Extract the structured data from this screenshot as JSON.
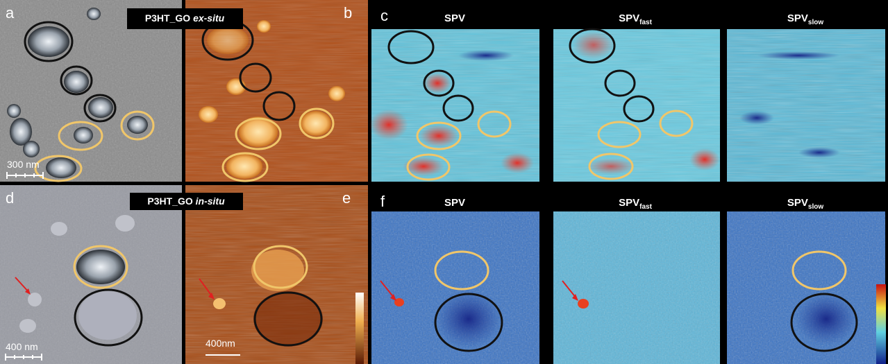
{
  "top_row": {
    "title": {
      "prefix": "P3HT_GO",
      "emphasis": "ex-situ"
    },
    "panels": [
      "a",
      "b",
      "c"
    ],
    "scale_bar": "300 nm",
    "spv_titles": [
      {
        "main": "SPV"
      },
      {
        "main": "SPV",
        "sub": "fast"
      },
      {
        "main": "SPV",
        "sub": "slow"
      }
    ]
  },
  "bottom_row": {
    "title": {
      "prefix": "P3HT_GO",
      "emphasis": "in-situ"
    },
    "panels": [
      "d",
      "e",
      "f"
    ],
    "scale_bars": [
      "400 nm",
      "400nm"
    ],
    "spv_titles": [
      {
        "main": "SPV"
      },
      {
        "main": "SPV",
        "sub": "fast"
      },
      {
        "main": "SPV",
        "sub": "slow"
      }
    ]
  }
}
